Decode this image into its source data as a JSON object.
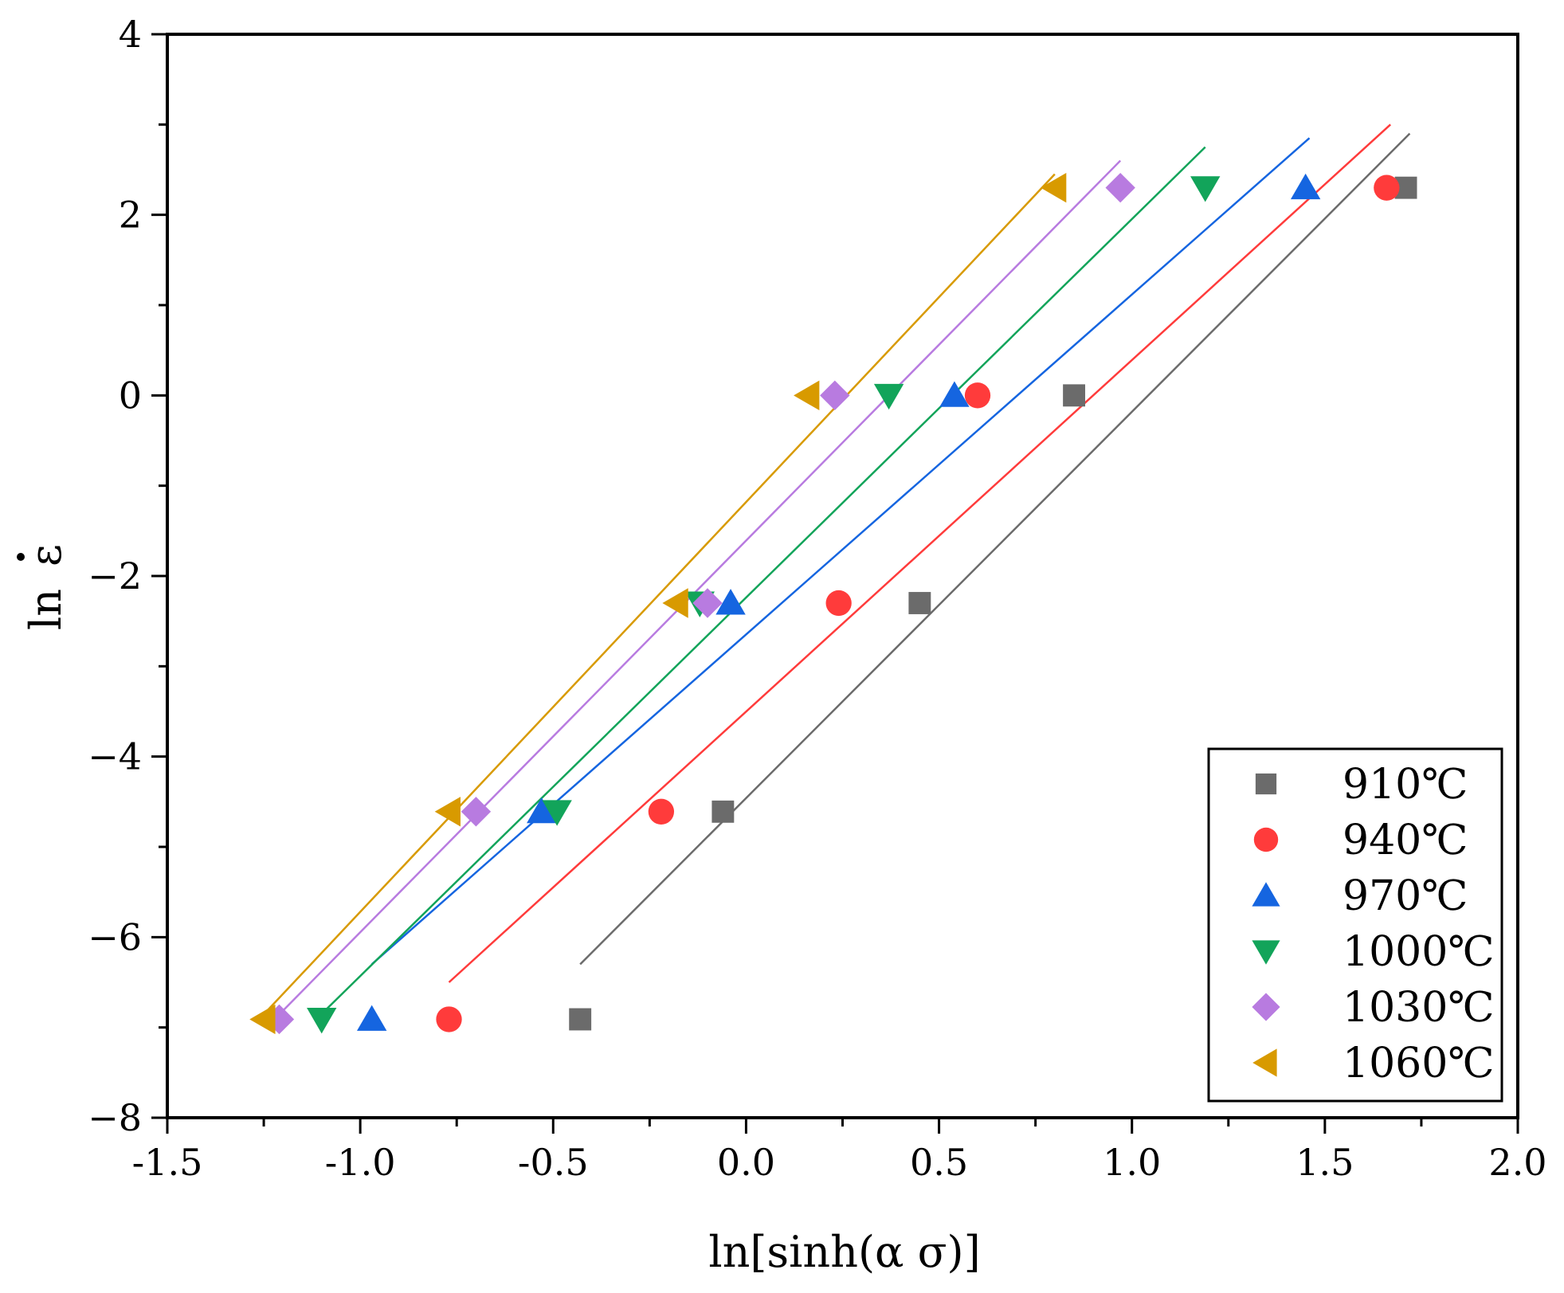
{
  "chart_data": {
    "type": "scatter",
    "title": "",
    "xlabel": "ln[sinh(α σ)]",
    "ylabel_main": "ln",
    "ylabel_symbol": "ε",
    "xlim": [
      -1.5,
      2.0
    ],
    "ylim": [
      -8,
      4
    ],
    "xticks": [
      -1.5,
      -1.0,
      -0.5,
      0.0,
      0.5,
      1.0,
      1.5,
      2.0
    ],
    "xtick_labels": [
      "-1.5",
      "-1.0",
      "-0.5",
      "0.0",
      "0.5",
      "1.0",
      "1.5",
      "2.0"
    ],
    "yticks": [
      -8,
      -6,
      -4,
      -2,
      0,
      2,
      4
    ],
    "ytick_labels": [
      "−8",
      "−6",
      "−4",
      "−2",
      "0",
      "2",
      "4"
    ],
    "grid": false,
    "legend_position": "bottom-right",
    "series": [
      {
        "name": "910℃",
        "marker": "square",
        "color": "#6b6b6b",
        "x": [
          -0.43,
          -0.06,
          0.45,
          0.85,
          1.71
        ],
        "y": [
          -6.91,
          -4.61,
          -2.3,
          0.0,
          2.3
        ],
        "fit": {
          "x": [
            -0.43,
            1.72
          ],
          "y": [
            -6.3,
            2.9
          ]
        }
      },
      {
        "name": "940℃",
        "marker": "circle",
        "color": "#ff3b3b",
        "x": [
          -0.77,
          -0.22,
          0.24,
          0.6,
          1.66
        ],
        "y": [
          -6.91,
          -4.61,
          -2.3,
          0.0,
          2.3
        ],
        "fit": {
          "x": [
            -0.77,
            1.67
          ],
          "y": [
            -6.5,
            3.0
          ]
        }
      },
      {
        "name": "970℃",
        "marker": "triangle-up",
        "color": "#1565e0",
        "x": [
          -0.97,
          -0.53,
          -0.04,
          0.54,
          1.45
        ],
        "y": [
          -6.91,
          -4.61,
          -2.3,
          0.0,
          2.3
        ],
        "fit": {
          "x": [
            -0.97,
            1.46
          ],
          "y": [
            -6.3,
            2.85
          ]
        }
      },
      {
        "name": "1000℃",
        "marker": "triangle-down",
        "color": "#12a45a",
        "x": [
          -1.1,
          -0.49,
          -0.12,
          0.37,
          1.19
        ],
        "y": [
          -6.91,
          -4.61,
          -2.3,
          0.0,
          2.3
        ],
        "fit": {
          "x": [
            -1.1,
            1.19
          ],
          "y": [
            -6.85,
            2.75
          ]
        }
      },
      {
        "name": "1030℃",
        "marker": "diamond",
        "color": "#b87be0",
        "x": [
          -1.21,
          -0.7,
          -0.1,
          0.23,
          0.97
        ],
        "y": [
          -6.91,
          -4.61,
          -2.3,
          0.0,
          2.3
        ],
        "fit": {
          "x": [
            -1.22,
            0.97
          ],
          "y": [
            -6.9,
            2.6
          ]
        }
      },
      {
        "name": "1060℃",
        "marker": "triangle-left",
        "color": "#d89a00",
        "x": [
          -1.25,
          -0.77,
          -0.18,
          0.16,
          0.8
        ],
        "y": [
          -6.91,
          -4.61,
          -2.3,
          0.0,
          2.3
        ],
        "fit": {
          "x": [
            -1.26,
            0.8
          ],
          "y": [
            -6.9,
            2.45
          ]
        }
      }
    ]
  }
}
